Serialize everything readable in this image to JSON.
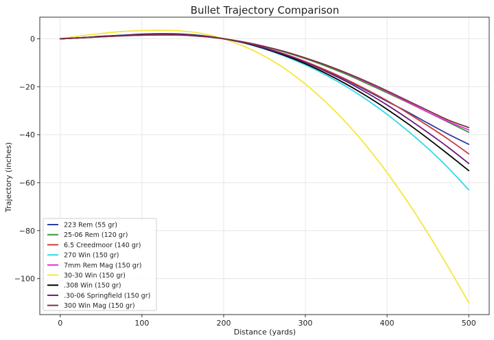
{
  "chart_data": {
    "type": "line",
    "title": "Bullet Trajectory Comparison",
    "xlabel": "Distance (yards)",
    "ylabel": "Trajectory (inches)",
    "xlim": [
      -25,
      525
    ],
    "ylim": [
      -115,
      9
    ],
    "xticks": [
      0,
      100,
      200,
      300,
      400,
      500
    ],
    "yticks": [
      0,
      -20,
      -40,
      -60,
      -80,
      -100
    ],
    "grid": true,
    "legend_position": "lower-left",
    "x": [
      0,
      25,
      50,
      75,
      100,
      125,
      150,
      175,
      200,
      225,
      250,
      275,
      300,
      325,
      350,
      375,
      400,
      425,
      450,
      475,
      500
    ],
    "series": [
      {
        "name": "223 Rem (55 gr)",
        "color": "#2a3fa0",
        "values": [
          0,
          0.4,
          0.9,
          1.4,
          1.8,
          2.0,
          1.8,
          1.2,
          0.0,
          -1.6,
          -3.8,
          -6.5,
          -9.6,
          -13.2,
          -17.2,
          -21.6,
          -26.1,
          -30.5,
          -35.2,
          -39.8,
          -44.0
        ]
      },
      {
        "name": "25-06 Rem (120 gr)",
        "color": "#2e9a35",
        "values": [
          0,
          0.4,
          0.8,
          1.2,
          1.6,
          1.7,
          1.6,
          1.0,
          0.0,
          -1.5,
          -3.3,
          -5.6,
          -8.3,
          -11.4,
          -14.8,
          -18.6,
          -22.5,
          -26.5,
          -30.6,
          -34.8,
          -39.0
        ]
      },
      {
        "name": "6.5 Creedmoor (140 gr)",
        "color": "#d03a3a",
        "values": [
          0,
          0.4,
          0.9,
          1.3,
          1.7,
          1.9,
          1.7,
          1.1,
          0.0,
          -1.6,
          -3.8,
          -6.4,
          -9.5,
          -13.0,
          -16.9,
          -21.2,
          -25.8,
          -30.9,
          -36.3,
          -41.9,
          -48.0
        ]
      },
      {
        "name": "270 Win (150 gr)",
        "color": "#30d8e8",
        "values": [
          0,
          0.4,
          1.0,
          1.5,
          1.9,
          2.1,
          1.9,
          1.3,
          0.0,
          -1.8,
          -4.3,
          -7.3,
          -10.9,
          -15.1,
          -19.9,
          -25.4,
          -31.5,
          -38.3,
          -45.7,
          -53.9,
          -63.0
        ]
      },
      {
        "name": "7mm Rem Mag (150 gr)",
        "color": "#e82ad8",
        "values": [
          0,
          0.4,
          0.8,
          1.2,
          1.5,
          1.6,
          1.5,
          0.9,
          0.0,
          -1.4,
          -3.2,
          -5.4,
          -8.0,
          -11.0,
          -14.4,
          -18.1,
          -22.1,
          -26.3,
          -30.6,
          -34.5,
          -38.0
        ]
      },
      {
        "name": "30-30 Win (150 gr)",
        "color": "#f5e63a",
        "values": [
          0,
          1.2,
          2.2,
          3.0,
          3.4,
          3.5,
          3.2,
          2.1,
          0.0,
          -3.2,
          -7.3,
          -12.5,
          -18.9,
          -26.4,
          -35.0,
          -44.8,
          -55.8,
          -67.9,
          -81.1,
          -95.3,
          -110.0
        ]
      },
      {
        "name": ".308 Win (150 gr)",
        "color": "#000000",
        "values": [
          0,
          0.4,
          1.0,
          1.4,
          1.9,
          2.1,
          1.9,
          1.2,
          0.0,
          -1.7,
          -4.1,
          -7.0,
          -10.4,
          -14.4,
          -18.9,
          -23.9,
          -29.4,
          -35.3,
          -41.6,
          -48.2,
          -55.0
        ]
      },
      {
        "name": ".30-06 Springfield (150 gr)",
        "color": "#6a1a7a",
        "values": [
          0,
          0.4,
          0.9,
          1.4,
          1.8,
          2.0,
          1.8,
          1.2,
          0.0,
          -1.6,
          -3.9,
          -6.6,
          -9.8,
          -13.6,
          -17.8,
          -22.5,
          -27.6,
          -33.2,
          -39.1,
          -45.3,
          -52.0
        ]
      },
      {
        "name": "300 Win Mag (150 gr)",
        "color": "#7a3340",
        "values": [
          0,
          0.4,
          0.8,
          1.2,
          1.5,
          1.6,
          1.5,
          0.9,
          0.0,
          -1.4,
          -3.2,
          -5.4,
          -8.0,
          -10.9,
          -14.2,
          -17.8,
          -21.7,
          -25.8,
          -29.9,
          -33.9,
          -37.0
        ]
      }
    ]
  }
}
